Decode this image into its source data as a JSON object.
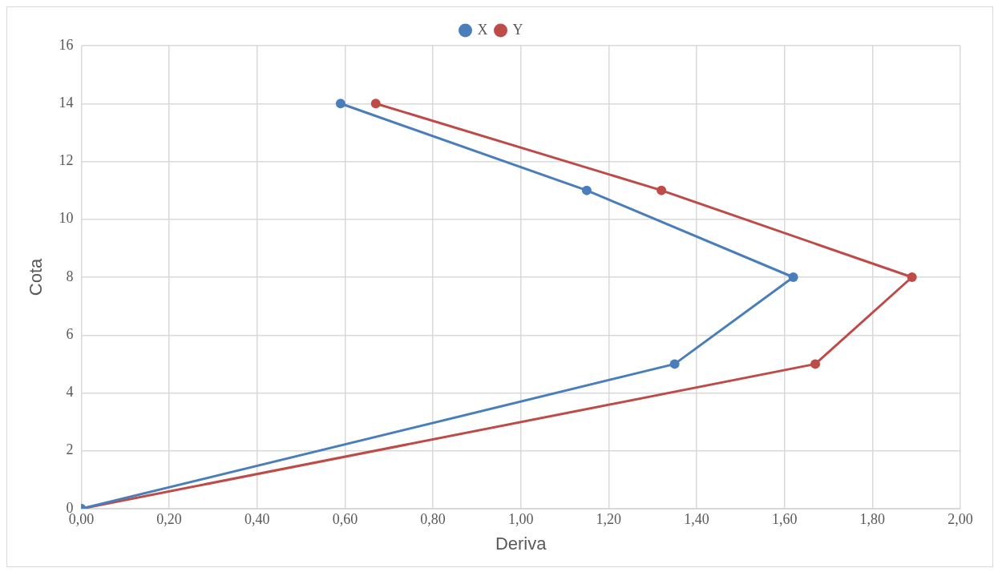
{
  "chart_data": {
    "type": "line",
    "xlabel": "Deriva",
    "ylabel": "Cota",
    "series": [
      {
        "name": "X",
        "color": "#4a7ebb",
        "x": [
          0.0,
          1.35,
          1.62,
          1.15,
          0.59
        ],
        "values": [
          0,
          5,
          8,
          11,
          14
        ]
      },
      {
        "name": "Y",
        "color": "#be4b48",
        "x": [
          0.0,
          1.67,
          1.89,
          1.32,
          0.67
        ],
        "values": [
          0,
          5,
          8,
          11,
          14
        ]
      }
    ],
    "xlim": [
      0,
      2
    ],
    "xticks": [
      {
        "value": 0,
        "label": "0,00"
      },
      {
        "value": 0.2,
        "label": "0,20"
      },
      {
        "value": 0.4,
        "label": "0,40"
      },
      {
        "value": 0.6,
        "label": "0,60"
      },
      {
        "value": 0.8,
        "label": "0,80"
      },
      {
        "value": 1,
        "label": "1,00"
      },
      {
        "value": 1.2,
        "label": "1,20"
      },
      {
        "value": 1.4,
        "label": "1,40"
      },
      {
        "value": 1.6,
        "label": "1,60"
      },
      {
        "value": 1.8,
        "label": "1,80"
      },
      {
        "value": 2,
        "label": "2,00"
      }
    ],
    "ylim": [
      0,
      16
    ],
    "yticks": [
      0,
      2,
      4,
      6,
      8,
      10,
      12,
      14,
      16
    ],
    "grid": true,
    "legend": "top",
    "marker": "circle",
    "line_style": "solid"
  }
}
